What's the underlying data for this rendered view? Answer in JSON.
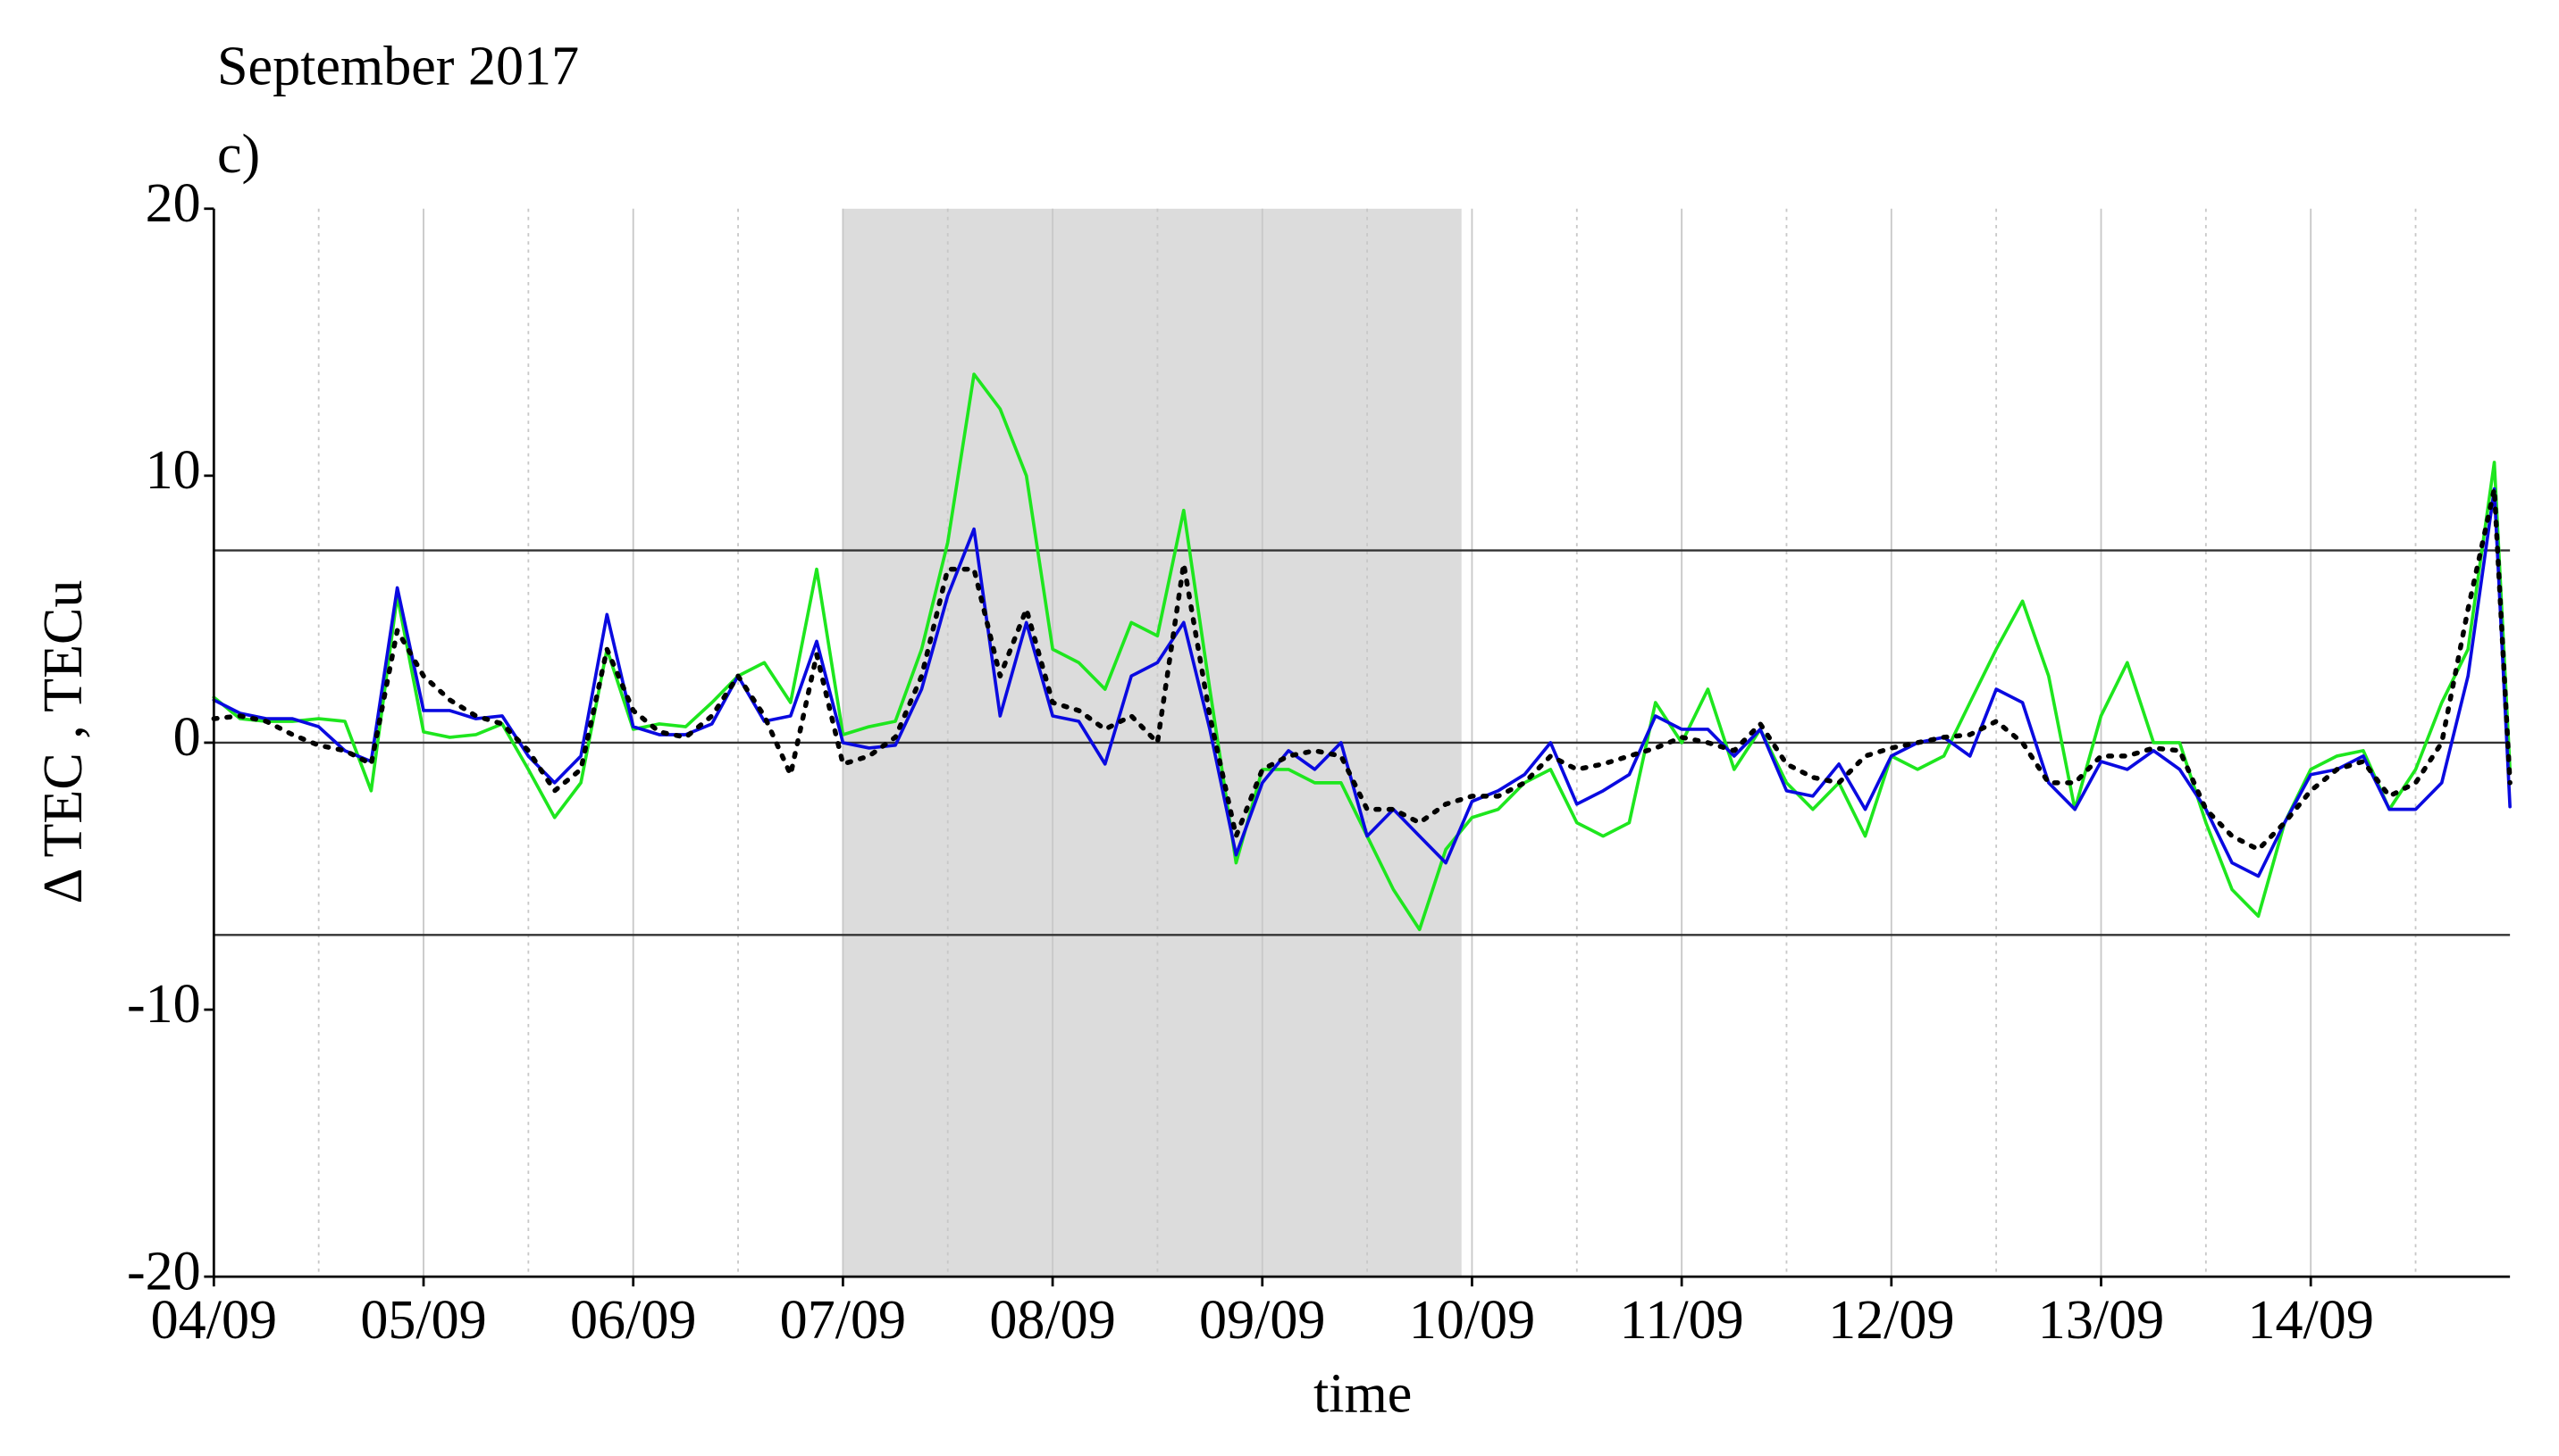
{
  "chart_data": {
    "type": "line",
    "title": "September 2017",
    "subtitle": "c)",
    "xlabel": "time",
    "ylabel": "Δ TEC , TECu",
    "x": [
      0,
      0.125,
      0.25,
      0.375,
      0.5,
      0.625,
      0.75,
      0.875,
      1,
      1.125,
      1.25,
      1.375,
      1.5,
      1.625,
      1.75,
      1.875,
      2,
      2.125,
      2.25,
      2.375,
      2.5,
      2.625,
      2.75,
      2.875,
      3,
      3.125,
      3.25,
      3.375,
      3.5,
      3.625,
      3.75,
      3.875,
      4,
      4.125,
      4.25,
      4.375,
      4.5,
      4.625,
      4.75,
      4.875,
      5,
      5.125,
      5.25,
      5.375,
      5.5,
      5.625,
      5.75,
      5.875,
      6,
      6.125,
      6.25,
      6.375,
      6.5,
      6.625,
      6.75,
      6.875,
      7,
      7.125,
      7.25,
      7.375,
      7.5,
      7.625,
      7.75,
      7.875,
      8,
      8.125,
      8.25,
      8.375,
      8.5,
      8.625,
      8.75,
      8.875,
      9,
      9.125,
      9.25,
      9.375,
      9.5,
      9.625,
      9.75,
      9.875,
      10,
      10.125,
      10.25,
      10.375,
      10.5,
      10.625,
      10.75,
      10.875,
      10.95
    ],
    "series": [
      {
        "color": "#1ee61e",
        "line_style": "solid",
        "values": [
          1.7,
          0.9,
          0.8,
          0.8,
          0.9,
          0.8,
          -1.8,
          5.5,
          0.4,
          0.2,
          0.3,
          0.7,
          -1.0,
          -2.8,
          -1.5,
          3.5,
          0.5,
          0.7,
          0.6,
          1.5,
          2.5,
          3.0,
          1.5,
          6.5,
          0.3,
          0.6,
          0.8,
          3.5,
          7.5,
          13.8,
          12.5,
          10.0,
          3.5,
          3.0,
          2.0,
          4.5,
          4.0,
          8.7,
          2.0,
          -4.5,
          -1.0,
          -1.0,
          -1.5,
          -1.5,
          -3.5,
          -5.5,
          -7.0,
          -4.0,
          -2.8,
          -2.5,
          -1.5,
          -1.0,
          -3.0,
          -3.5,
          -3.0,
          1.5,
          0.0,
          2.0,
          -1.0,
          0.5,
          -1.5,
          -2.5,
          -1.5,
          -3.5,
          -0.5,
          -1.0,
          -0.5,
          1.5,
          3.5,
          5.3,
          2.5,
          -2.5,
          1.0,
          3.0,
          0.0,
          0.0,
          -3.0,
          -5.5,
          -6.5,
          -3.0,
          -1.0,
          -0.5,
          -0.3,
          -2.5,
          -1.0,
          1.5,
          3.5,
          10.5,
          -1.0
        ]
      },
      {
        "color": "#0a0ae0",
        "line_style": "solid",
        "values": [
          1.6,
          1.1,
          0.9,
          0.9,
          0.6,
          -0.3,
          -0.7,
          5.8,
          1.2,
          1.2,
          0.9,
          1.0,
          -0.5,
          -1.5,
          -0.5,
          4.8,
          0.6,
          0.3,
          0.3,
          0.7,
          2.5,
          0.8,
          1.0,
          3.8,
          0.0,
          -0.2,
          -0.1,
          2.0,
          5.5,
          8.0,
          1.0,
          4.5,
          1.0,
          0.8,
          -0.8,
          2.5,
          3.0,
          4.5,
          0.5,
          -4.2,
          -1.5,
          -0.3,
          -1.0,
          0.0,
          -3.5,
          -2.5,
          -3.5,
          -4.5,
          -2.2,
          -1.8,
          -1.2,
          0.0,
          -2.3,
          -1.8,
          -1.2,
          1.0,
          0.5,
          0.5,
          -0.5,
          0.5,
          -1.8,
          -2.0,
          -0.8,
          -2.5,
          -0.5,
          0.0,
          0.2,
          -0.5,
          2.0,
          1.5,
          -1.5,
          -2.5,
          -0.7,
          -1.0,
          -0.3,
          -1.0,
          -2.5,
          -4.5,
          -5.0,
          -3.0,
          -1.2,
          -1.0,
          -0.5,
          -2.5,
          -2.5,
          -1.5,
          2.5,
          9.5,
          -2.4
        ]
      },
      {
        "color": "#000000",
        "line_style": "dotted",
        "values": [
          0.9,
          1.0,
          0.8,
          0.3,
          -0.1,
          -0.3,
          -0.8,
          4.2,
          2.5,
          1.6,
          1.0,
          0.7,
          -0.3,
          -1.8,
          -1.0,
          3.5,
          1.2,
          0.4,
          0.2,
          1.0,
          2.5,
          1.0,
          -1.2,
          3.3,
          -0.8,
          -0.5,
          0.2,
          2.5,
          6.5,
          6.5,
          2.5,
          5.0,
          1.5,
          1.2,
          0.5,
          1.0,
          0.0,
          6.7,
          1.0,
          -3.5,
          -1.0,
          -0.5,
          -0.3,
          -0.5,
          -2.5,
          -2.5,
          -3.0,
          -2.3,
          -2.0,
          -2.0,
          -1.5,
          -0.5,
          -1.0,
          -0.8,
          -0.5,
          -0.2,
          0.2,
          0.0,
          -0.3,
          0.7,
          -0.8,
          -1.3,
          -1.5,
          -0.5,
          -0.2,
          0.0,
          0.2,
          0.3,
          0.8,
          0.0,
          -1.5,
          -1.5,
          -0.5,
          -0.5,
          -0.2,
          -0.3,
          -2.5,
          -3.5,
          -4.0,
          -3.0,
          -1.8,
          -1.0,
          -0.7,
          -2.0,
          -1.5,
          0.0,
          5.0,
          9.5,
          -1.5
        ]
      }
    ],
    "xlim": [
      0,
      10.95
    ],
    "ylim": [
      -20,
      20
    ],
    "xticks": [
      {
        "value": 0,
        "label": "04/09"
      },
      {
        "value": 1,
        "label": "05/09"
      },
      {
        "value": 2,
        "label": "06/09"
      },
      {
        "value": 3,
        "label": "07/09"
      },
      {
        "value": 4,
        "label": "08/09"
      },
      {
        "value": 5,
        "label": "09/09"
      },
      {
        "value": 6,
        "label": "10/09"
      },
      {
        "value": 7,
        "label": "11/09"
      },
      {
        "value": 8,
        "label": "12/09"
      },
      {
        "value": 9,
        "label": "13/09"
      },
      {
        "value": 10,
        "label": "14/09"
      }
    ],
    "xminorticks": [
      0.5,
      1.5,
      2.5,
      3.5,
      4.5,
      5.5,
      6.5,
      7.5,
      8.5,
      9.5,
      10.5
    ],
    "yticks": [
      -20,
      -10,
      0,
      10,
      20
    ],
    "hlines": [
      7.2,
      0,
      -7.2
    ],
    "shade": [
      3.0,
      5.95
    ],
    "grid": true
  }
}
